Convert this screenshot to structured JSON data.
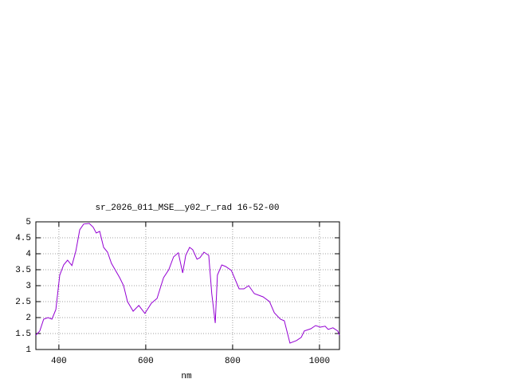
{
  "chart_data": {
    "type": "line",
    "title": "sr_2026_011_MSE__y02_r_rad 16-52-00",
    "x_label": "nm",
    "x": [
      347,
      356,
      365,
      375,
      384,
      393,
      402,
      411,
      420,
      430,
      439,
      448,
      457,
      470,
      479,
      486,
      494,
      503,
      512,
      521,
      540,
      549,
      558,
      571,
      584,
      598,
      613,
      626,
      641,
      653,
      664,
      675,
      685,
      692,
      701,
      708,
      718,
      725,
      734,
      745,
      752,
      760,
      765,
      775,
      784,
      797,
      815,
      826,
      837,
      850,
      870,
      885,
      896,
      910,
      919,
      932,
      947,
      958,
      965,
      980,
      991,
      1002,
      1013,
      1020,
      1031,
      1042,
      1046
    ],
    "series": [
      {
        "color": "#9400d3",
        "values": [
          1.45,
          1.58,
          1.95,
          2.0,
          1.95,
          2.25,
          3.33,
          3.65,
          3.8,
          3.63,
          4.08,
          4.75,
          4.93,
          4.95,
          4.83,
          4.65,
          4.7,
          4.2,
          4.05,
          3.7,
          3.25,
          3.0,
          2.5,
          2.2,
          2.38,
          2.13,
          2.45,
          2.6,
          3.25,
          3.5,
          3.9,
          4.03,
          3.4,
          3.95,
          4.2,
          4.13,
          3.83,
          3.88,
          4.05,
          3.95,
          2.75,
          1.83,
          3.33,
          3.65,
          3.6,
          3.48,
          2.9,
          2.9,
          3.0,
          2.75,
          2.65,
          2.5,
          2.15,
          1.95,
          1.9,
          1.2,
          1.28,
          1.38,
          1.58,
          1.65,
          1.75,
          1.7,
          1.73,
          1.63,
          1.68,
          1.58,
          1.45
        ]
      }
    ],
    "xlim": [
      347,
      1046
    ],
    "ylim": [
      1,
      5
    ],
    "xticks": [
      400,
      600,
      800,
      1000
    ],
    "yticks": [
      1,
      1.5,
      2,
      2.5,
      3,
      3.5,
      4,
      4.5,
      5
    ],
    "grid": true
  }
}
